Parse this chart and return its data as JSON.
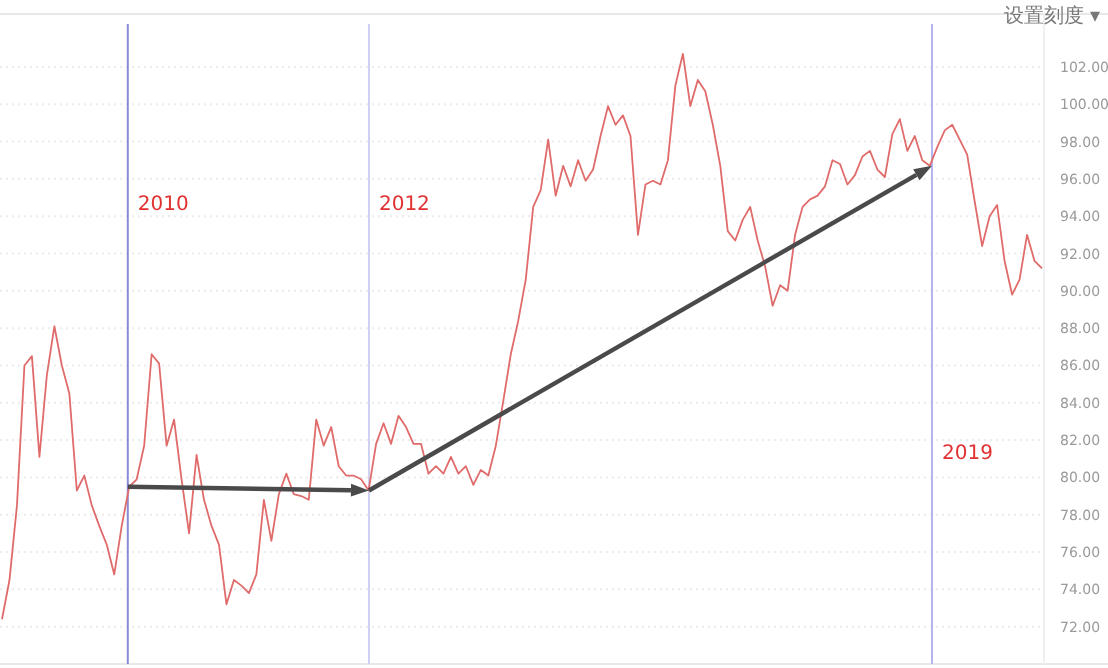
{
  "chart_data": {
    "type": "line",
    "categories": [
      null,
      null,
      null,
      null,
      null,
      null,
      null,
      null,
      null,
      null,
      null,
      null,
      null,
      null,
      null,
      null,
      null,
      null,
      null,
      null,
      null,
      null,
      null,
      null,
      null,
      null,
      null,
      null,
      null,
      null,
      null,
      null,
      null,
      null,
      null,
      null,
      null,
      null,
      null,
      null,
      null,
      null,
      null,
      null,
      null,
      null,
      null,
      null,
      null,
      null,
      null,
      null,
      null,
      null,
      null,
      null,
      null,
      null,
      null,
      null,
      null,
      null,
      null,
      null,
      null,
      null,
      null,
      null,
      null,
      null,
      null,
      null,
      null,
      null,
      null,
      null,
      null,
      null,
      null,
      null,
      null,
      null,
      null,
      null,
      null,
      null,
      null,
      null,
      null,
      null,
      null,
      null,
      null,
      null,
      null,
      null,
      null,
      null,
      null,
      null,
      null,
      null,
      null,
      null,
      null,
      null,
      null,
      null,
      null,
      null,
      null,
      null,
      null,
      null,
      null,
      null,
      null,
      null,
      null,
      null,
      null,
      null,
      null,
      null,
      null,
      null,
      null,
      null,
      null,
      null,
      null,
      null,
      null,
      null,
      null,
      null,
      null,
      null,
      null,
      null
    ],
    "series": [
      {
        "color": "#e06b6b",
        "values": [
          72.4,
          74.5,
          78.5,
          86.0,
          86.5,
          81.1,
          85.5,
          88.1,
          86.0,
          84.5,
          79.3,
          80.1,
          78.5,
          77.4,
          76.4,
          74.8,
          77.4,
          79.5,
          79.9,
          81.7,
          86.6,
          86.1,
          81.7,
          83.1,
          79.9,
          77.0,
          81.2,
          78.8,
          77.4,
          76.4,
          73.2,
          74.5,
          74.2,
          73.8,
          74.8,
          78.8,
          76.6,
          79.1,
          80.2,
          79.1,
          79.0,
          78.8,
          83.1,
          81.7,
          82.7,
          80.6,
          80.1,
          80.1,
          79.9,
          79.3,
          81.8,
          82.9,
          81.8,
          83.3,
          82.7,
          81.8,
          81.8,
          80.2,
          80.6,
          80.2,
          81.1,
          80.2,
          80.6,
          79.6,
          80.4,
          80.1,
          81.7,
          84.1,
          86.6,
          88.4,
          90.6,
          94.5,
          95.4,
          98.1,
          95.1,
          96.7,
          95.6,
          97.0,
          95.9,
          96.5,
          98.3,
          99.9,
          98.9,
          99.4,
          98.3,
          93.0,
          95.7,
          95.9,
          95.7,
          97.0,
          101.0,
          102.7,
          99.9,
          101.3,
          100.7,
          98.9,
          96.7,
          93.2,
          92.7,
          93.8,
          94.5,
          92.7,
          91.3,
          89.2,
          90.3,
          90.0,
          93.0,
          94.5,
          94.9,
          95.1,
          95.6,
          97.0,
          96.8,
          95.7,
          96.2,
          97.2,
          97.5,
          96.5,
          96.1,
          98.4,
          99.2,
          97.5,
          98.3,
          97.0,
          96.7,
          97.7,
          98.6,
          98.9,
          98.1,
          97.3,
          94.8,
          92.4,
          94.0,
          94.6,
          91.6,
          89.8,
          90.6,
          93.0,
          91.6,
          91.2
        ]
      }
    ],
    "ylim": [
      70,
      104.3
    ],
    "yticks": [
      {
        "value": 72,
        "label": "72.00"
      },
      {
        "value": 74,
        "label": "74.00"
      },
      {
        "value": 76,
        "label": "76.00"
      },
      {
        "value": 78,
        "label": "78.00"
      },
      {
        "value": 80,
        "label": "80.00"
      },
      {
        "value": 82,
        "label": "82.00"
      },
      {
        "value": 84,
        "label": "84.00"
      },
      {
        "value": 86,
        "label": "86.00"
      },
      {
        "value": 88,
        "label": "88.00"
      },
      {
        "value": 90,
        "label": "90.00"
      },
      {
        "value": 92,
        "label": "92.00"
      },
      {
        "value": 94,
        "label": "94.00"
      },
      {
        "value": 96,
        "label": "96.00"
      },
      {
        "value": 98,
        "label": "98.00"
      },
      {
        "value": 100,
        "label": "100.00"
      },
      {
        "value": 102,
        "label": "102.00"
      }
    ],
    "grid": "y",
    "line_style": "solid",
    "marker": "none",
    "annotations": [
      "设置刻度 ▾",
      "2010",
      "2012",
      "2019"
    ]
  }
}
